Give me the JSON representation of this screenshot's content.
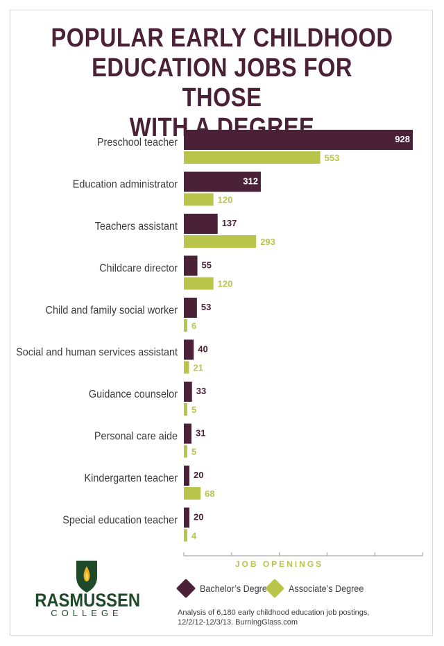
{
  "title": "POPULAR EARLY CHILDHOOD\nEDUCATION JOBS FOR THOSE\nWITH A DEGREE",
  "colors": {
    "bachelor": "#4a2137",
    "associate": "#b8c44a",
    "title": "#4a2137",
    "logo_green": "#1f4a2a"
  },
  "chart_data": {
    "type": "bar",
    "orientation": "horizontal",
    "title": "POPULAR EARLY CHILDHOOD EDUCATION JOBS FOR THOSE WITH A DEGREE",
    "categories": [
      "Preschool teacher",
      "Education administrator",
      "Teachers assistant",
      "Childcare director",
      "Child and family social worker",
      "Social and human services assistant",
      "Guidance counselor",
      "Personal care aide",
      "Kindergarten teacher",
      "Special education teacher"
    ],
    "series": [
      {
        "name": "Bachelor’s Degree",
        "values": [
          928,
          312,
          137,
          55,
          53,
          40,
          33,
          31,
          20,
          20
        ]
      },
      {
        "name": "Associate’s Degree",
        "values": [
          553,
          120,
          293,
          120,
          6,
          21,
          5,
          5,
          68,
          4
        ]
      }
    ],
    "xlabel": "JOB OPENINGS",
    "xlim": [
      0,
      1000
    ],
    "legend": "bottom",
    "grid": false
  },
  "legend": {
    "bachelor": "Bachelor’s Degree",
    "associate": "Associate’s  Degree"
  },
  "source": "Analysis of 6,180 early childhood education job postings,\n12/2/12-12/3/13. BurningGlass.com",
  "logo": {
    "name": "RASMUSSEN",
    "sub": "COLLEGE"
  }
}
